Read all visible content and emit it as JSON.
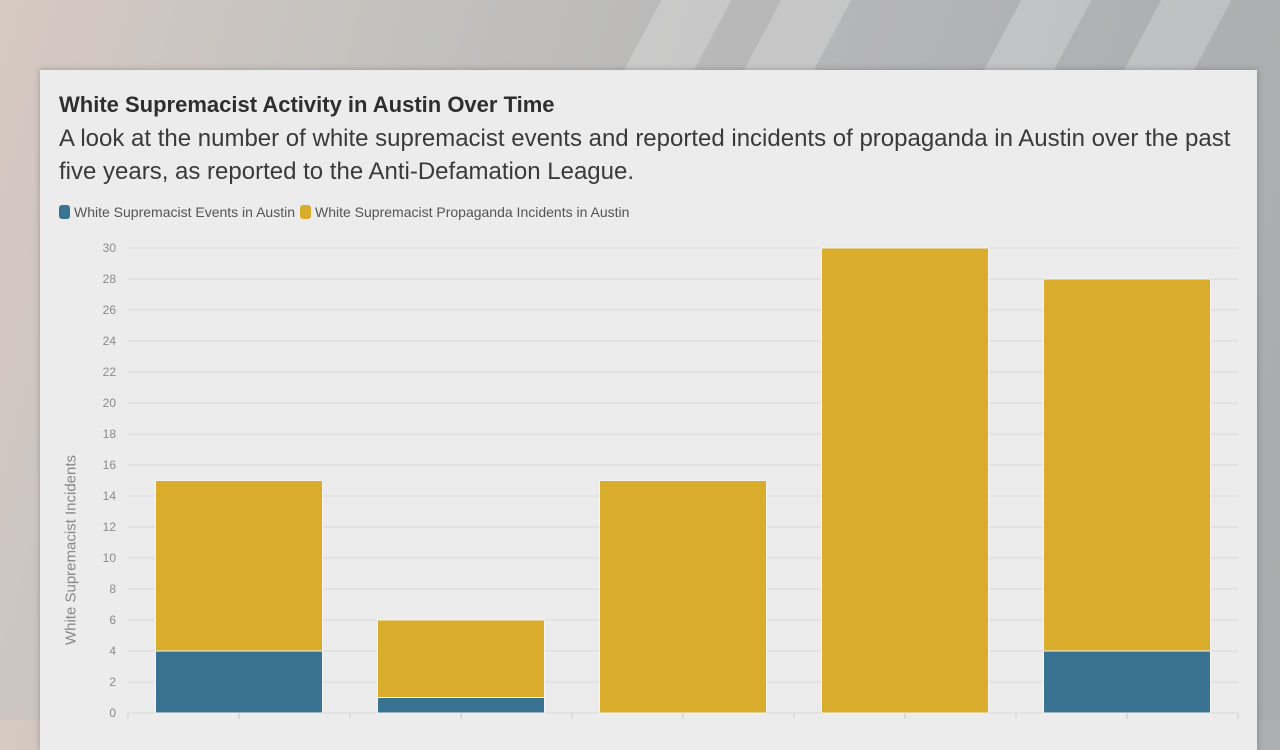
{
  "chart_data": {
    "type": "bar",
    "stacked": true,
    "title": "White Supremacist Activity in Austin Over Time",
    "subtitle": "A look at the number of white supremacist events and reported incidents of propaganda in Austin over the past five years, as reported to the Anti-Defamation League.",
    "ylabel": "White Supremacist Incidents",
    "ylim": [
      0,
      30
    ],
    "yticks": [
      0,
      2,
      4,
      6,
      8,
      10,
      12,
      14,
      16,
      18,
      20,
      22,
      24,
      26,
      28,
      30
    ],
    "grid": true,
    "legend_position": "top-left",
    "categories": [
      "",
      "",
      "",
      "",
      ""
    ],
    "series": [
      {
        "name": "White Supremacist Events in Austin",
        "color": "#3a7291",
        "values": [
          4,
          1,
          0,
          0,
          4
        ]
      },
      {
        "name": "White Supremacist Propaganda Incidents in Austin",
        "color": "#d9ad2b",
        "values": [
          11,
          5,
          15,
          30,
          24
        ]
      }
    ]
  }
}
